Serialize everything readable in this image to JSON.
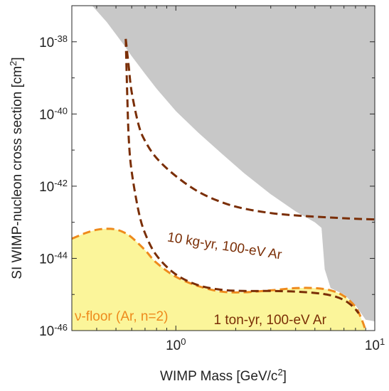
{
  "chart_data": {
    "type": "area",
    "title": "",
    "xlabel": "WIMP Mass [GeV/c",
    "xlabel_sup": "2",
    "xlabel_tail": "]",
    "ylabel": "SI WIMP-nucleon cross section [cm",
    "ylabel_sup": "2",
    "ylabel_tail": "]",
    "x_scale": "log",
    "y_scale": "log",
    "xlim": [
      0.3,
      10
    ],
    "ylim": [
      1e-46,
      1e-37
    ],
    "grid": false,
    "x_ticks": [
      {
        "value": 1,
        "base": "10",
        "exp": "0"
      },
      {
        "value": 10,
        "base": "10",
        "exp": "1"
      }
    ],
    "y_ticks": [
      {
        "value": 1e-46,
        "base": "10",
        "exp": "-46"
      },
      {
        "value": 1e-44,
        "base": "10",
        "exp": "-44"
      },
      {
        "value": 1e-42,
        "base": "10",
        "exp": "-42"
      },
      {
        "value": 1e-40,
        "base": "10",
        "exp": "-40"
      },
      {
        "value": 1e-38,
        "base": "10",
        "exp": "-38"
      }
    ],
    "colors": {
      "excluded": "#c8c8c8",
      "floor_fill": "#fbf59a",
      "floor_line": "#ee8a1c",
      "projection": "#7a2e06"
    },
    "series": [
      {
        "kind": "excluded-region",
        "x": [
          0.3,
          0.3,
          0.38,
          0.45,
          0.5,
          0.55,
          0.6,
          0.7,
          0.8,
          1.0,
          1.3,
          1.7,
          2.2,
          3.0,
          4.0,
          5.0,
          5.4,
          5.6,
          6.0,
          7.0,
          8.0,
          9.0,
          10.0,
          10.0
        ],
        "y": [
          1e-37,
          1e-37,
          1e-37,
          3.5e-38,
          1.6e-38,
          8e-39,
          4e-39,
          1.3e-39,
          5e-40,
          1.2e-40,
          3e-41,
          8e-42,
          2.3e-42,
          6e-43,
          2e-43,
          1e-43,
          7e-44,
          5e-45,
          1.5e-45,
          1e-45,
          5e-46,
          2e-46,
          1.8e-46,
          1e-37
        ]
      },
      {
        "name": "ν-floor (Ar, n=2)",
        "kind": "neutrino-floor",
        "x": [
          0.3,
          0.35,
          0.4,
          0.45,
          0.5,
          0.55,
          0.6,
          0.7,
          0.8,
          1.0,
          1.3,
          1.7,
          2.2,
          3.0,
          4.0,
          5.0,
          6.0,
          7.0,
          8.0,
          8.6,
          9.0
        ],
        "y": [
          3.5e-44,
          5e-44,
          6.2e-44,
          6.6e-44,
          6.3e-44,
          5.2e-44,
          3.8e-44,
          1.7e-44,
          7.5e-45,
          3.1e-45,
          1.7e-45,
          1.2e-45,
          1.15e-45,
          1.3e-45,
          1.5e-45,
          1.5e-45,
          1.3e-45,
          9e-46,
          4.5e-46,
          2e-46,
          1e-46
        ]
      },
      {
        "name": "10 kg-yr, 100-eV Ar",
        "kind": "projection",
        "x": [
          0.56,
          0.58,
          0.6,
          0.65,
          0.7,
          0.8,
          1.0,
          1.3,
          1.7,
          2.2,
          3.0,
          4.0,
          6.0,
          8.0,
          10.0
        ],
        "y": [
          1.2e-38,
          2e-39,
          4e-40,
          5e-41,
          1.8e-41,
          6e-42,
          1.9e-42,
          7e-43,
          3.6e-43,
          2.4e-43,
          1.8e-43,
          1.55e-43,
          1.35e-43,
          1.25e-43,
          1.2e-43
        ]
      },
      {
        "name": "1 ton-yr, 100-eV Ar",
        "kind": "projection",
        "x": [
          0.56,
          0.57,
          0.58,
          0.6,
          0.65,
          0.7,
          0.8,
          1.0,
          1.3,
          1.7,
          2.2,
          3.0,
          4.0,
          5.0,
          6.0,
          7.0,
          7.8,
          8.3
        ],
        "y": [
          1.2e-38,
          3e-40,
          2e-41,
          2.5e-42,
          2e-43,
          5e-44,
          1.2e-44,
          3.6e-45,
          1.8e-45,
          1.35e-45,
          1.25e-45,
          1.25e-45,
          1.2e-45,
          1.1e-45,
          9.5e-46,
          7e-46,
          4.5e-46,
          3e-46
        ]
      }
    ],
    "annotations": [
      {
        "text": "10 kg-yr, 100-eV Ar",
        "x": 0.9,
        "y": 3e-44,
        "rotation": 9,
        "color_key": "projection"
      },
      {
        "text": "1 ton-yr, 100-eV Ar",
        "x": 1.55,
        "y": 1.5e-46,
        "rotation": 0,
        "color_key": "projection"
      },
      {
        "text": "ν-floor (Ar, n=2)",
        "x": 0.31,
        "y": 1.9e-46,
        "rotation": 0,
        "color_key": "floor_line"
      }
    ]
  }
}
